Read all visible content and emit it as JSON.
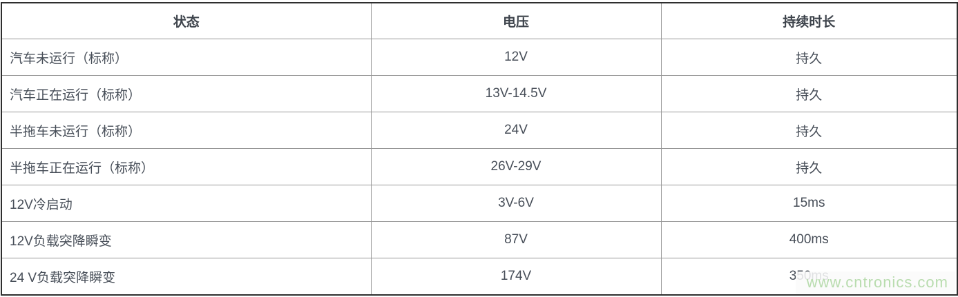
{
  "table": {
    "columns": [
      {
        "key": "state",
        "label": "状态"
      },
      {
        "key": "voltage",
        "label": "电压"
      },
      {
        "key": "duration",
        "label": "持续时长"
      }
    ],
    "rows": [
      {
        "state": "汽车未运行（标称）",
        "voltage": "12V",
        "duration": "持久"
      },
      {
        "state": "汽车正在运行（标称）",
        "voltage": "13V-14.5V",
        "duration": "持久"
      },
      {
        "state": "半拖车未运行（标称）",
        "voltage": "24V",
        "duration": "持久"
      },
      {
        "state": "半拖车正在运行（标称）",
        "voltage": "26V-29V",
        "duration": "持久"
      },
      {
        "state": "12V冷启动",
        "voltage": "3V-6V",
        "duration": "15ms"
      },
      {
        "state": "12V负载突降瞬变",
        "voltage": "87V",
        "duration": "400ms"
      },
      {
        "state": "24 V负载突降瞬变",
        "voltage": "174V",
        "duration": "350ms"
      }
    ]
  },
  "watermark": {
    "text": "www.cntronics.com",
    "color": "#b8dcae"
  },
  "colors": {
    "outer_border": "#2e2e2e",
    "inner_border": "#979797",
    "header_text": "#3d434b",
    "body_text": "#474e58",
    "background": "#ffffff"
  }
}
